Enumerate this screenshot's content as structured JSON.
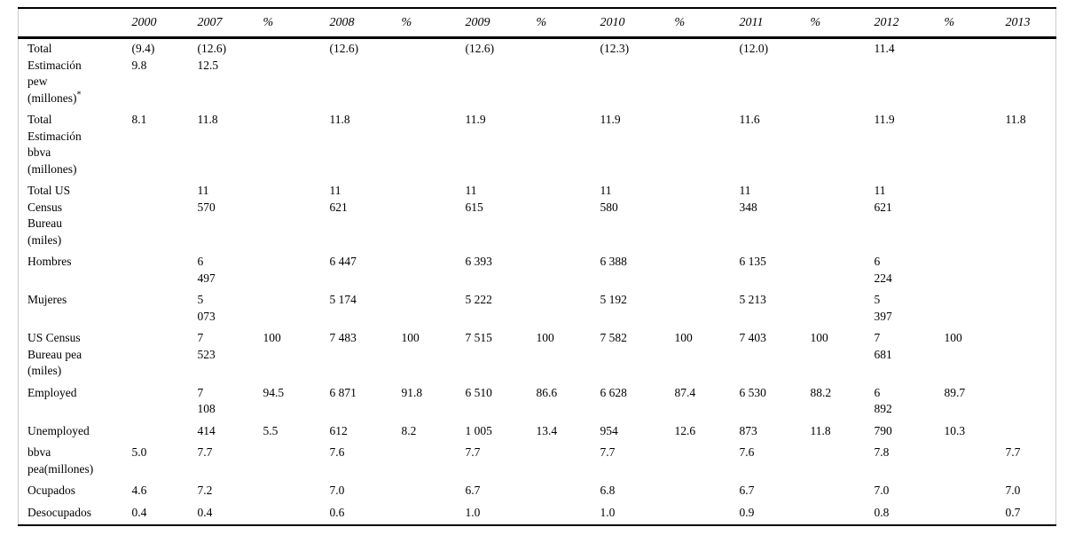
{
  "table": {
    "columns": [
      "2000",
      "2007",
      "%",
      "2008",
      "%",
      "2009",
      "%",
      "2010",
      "%",
      "2011",
      "%",
      "2012",
      "%",
      "2013"
    ],
    "rows": [
      {
        "label": "Total\nEstimación\npew\n(millones)",
        "label_sup": "*",
        "cells": [
          "(9.4)\n9.8",
          "(12.6)\n12.5",
          "",
          "(12.6)",
          "",
          "(12.6)",
          "",
          "(12.3)",
          "",
          "(12.0)",
          "",
          "11.4",
          "",
          ""
        ]
      },
      {
        "label": "Total\nEstimación\nbbva\n(millones)",
        "cells": [
          "8.1",
          "11.8",
          "",
          "11.8",
          "",
          "11.9",
          "",
          "11.9",
          "",
          "11.6",
          "",
          "11.9",
          "",
          "11.8"
        ]
      },
      {
        "label": "Total US\nCensus\nBureau\n(miles)",
        "cells": [
          "",
          "11\n570",
          "",
          "11\n621",
          "",
          "11\n615",
          "",
          "11\n580",
          "",
          "11\n348",
          "",
          "11\n621",
          "",
          ""
        ]
      },
      {
        "label": "Hombres",
        "cells": [
          "",
          "6\n497",
          "",
          "6 447",
          "",
          "6 393",
          "",
          "6 388",
          "",
          "6 135",
          "",
          "6\n224",
          "",
          ""
        ]
      },
      {
        "label": "Mujeres",
        "cells": [
          "",
          "5\n073",
          "",
          "5 174",
          "",
          "5 222",
          "",
          "5 192",
          "",
          "5 213",
          "",
          "5\n397",
          "",
          ""
        ]
      },
      {
        "label": "US Census\nBureau pea\n(miles)",
        "cells": [
          "",
          "7\n523",
          "100",
          "7 483",
          "100",
          "7 515",
          "100",
          "7 582",
          "100",
          "7 403",
          "100",
          "7\n681",
          "100",
          ""
        ]
      },
      {
        "label": "Employed",
        "cells": [
          "",
          "7\n108",
          "94.5",
          "6 871",
          "91.8",
          "6 510",
          "86.6",
          "6 628",
          "87.4",
          "6 530",
          "88.2",
          "6\n892",
          "89.7",
          ""
        ]
      },
      {
        "label": "Unemployed",
        "cells": [
          "",
          "414",
          "5.5",
          "612",
          "8.2",
          "1 005",
          "13.4",
          "954",
          "12.6",
          "873",
          "11.8",
          "790",
          "10.3",
          ""
        ]
      },
      {
        "label": "bbva\npea(millones)",
        "cells": [
          "5.0",
          "7.7",
          "",
          "7.6",
          "",
          "7.7",
          "",
          "7.7",
          "",
          "7.6",
          "",
          "7.8",
          "",
          "7.7"
        ]
      },
      {
        "label": "Ocupados",
        "cells": [
          "4.6",
          "7.2",
          "",
          "7.0",
          "",
          "6.7",
          "",
          "6.8",
          "",
          "6.7",
          "",
          "7.0",
          "",
          "7.0"
        ]
      },
      {
        "label": "Desocupados",
        "cells": [
          "0.4",
          "0.4",
          "",
          "0.6",
          "",
          "1.0",
          "",
          "1.0",
          "",
          "0.9",
          "",
          "0.8",
          "",
          "0.7"
        ]
      }
    ]
  }
}
